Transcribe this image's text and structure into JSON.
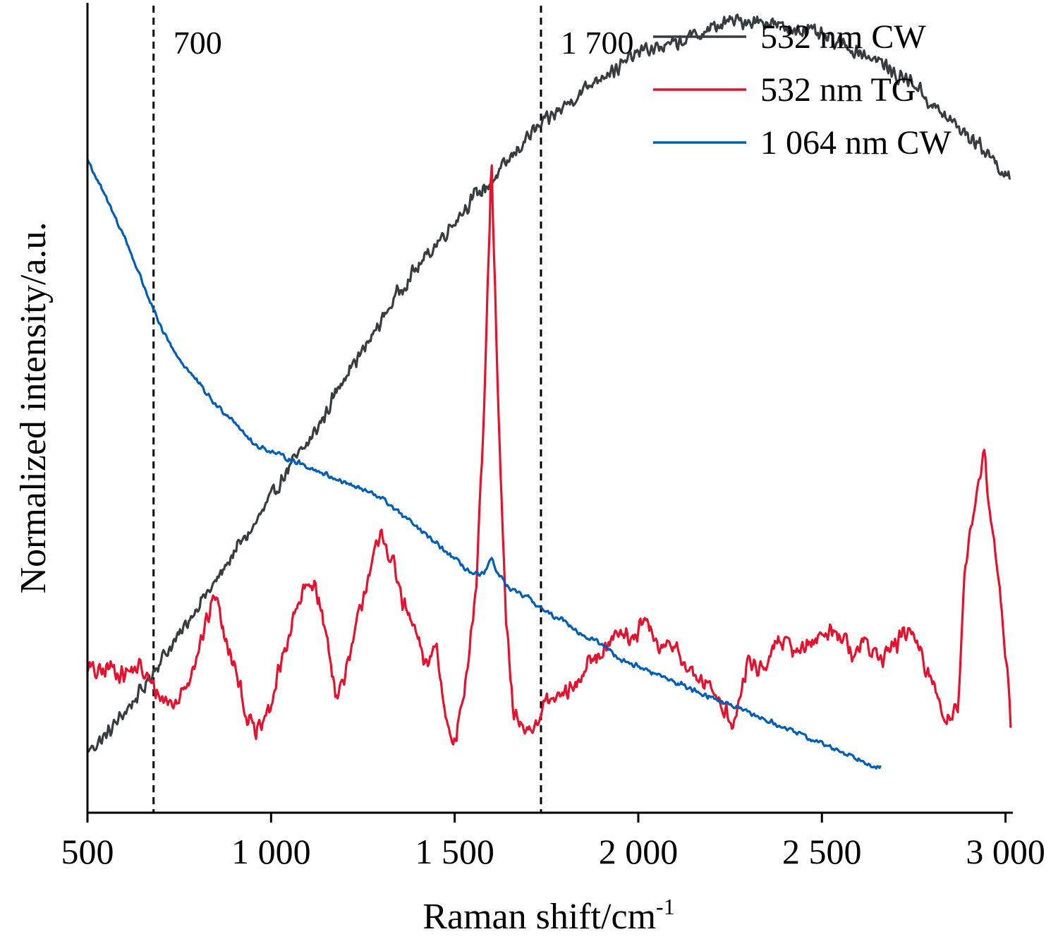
{
  "chart_data": {
    "type": "line",
    "xlabel": "Raman shift/cm",
    "xlabel_superscript": "-1",
    "ylabel": "Normalized intensity/a.u.",
    "xlim": [
      500,
      3020
    ],
    "ylim": [
      0,
      1.05
    ],
    "x_ticks": [
      500,
      1000,
      1500,
      2000,
      2500,
      3000
    ],
    "x_tick_labels": [
      "500",
      "1 000",
      "1 500",
      "2 000",
      "2 500",
      "3 000"
    ],
    "y_ticks_shown": false,
    "grid": false,
    "legend_position": "top-right",
    "reference_lines": [
      {
        "x": 680,
        "label": "700",
        "style": "dashed"
      },
      {
        "x": 1735,
        "label": "1 700",
        "style": "dashed"
      }
    ],
    "series": [
      {
        "name": "532 nm CW",
        "color": "#373c3f",
        "noise": 0.012,
        "x": [
          500,
          550,
          600,
          650,
          700,
          750,
          800,
          850,
          900,
          950,
          1000,
          1050,
          1100,
          1150,
          1200,
          1250,
          1300,
          1350,
          1400,
          1450,
          1500,
          1550,
          1600,
          1650,
          1700,
          1750,
          1800,
          1850,
          1900,
          1950,
          2000,
          2100,
          2200,
          2250,
          2300,
          2350,
          2400,
          2450,
          2500,
          2550,
          2600,
          2650,
          2700,
          2750,
          2800,
          2850,
          2900,
          2950,
          3000,
          3015
        ],
        "y": [
          0.08,
          0.1,
          0.13,
          0.16,
          0.2,
          0.23,
          0.27,
          0.3,
          0.34,
          0.37,
          0.41,
          0.45,
          0.48,
          0.52,
          0.57,
          0.6,
          0.64,
          0.68,
          0.71,
          0.74,
          0.77,
          0.8,
          0.82,
          0.85,
          0.88,
          0.9,
          0.92,
          0.94,
          0.96,
          0.97,
          0.99,
          1.0,
          1.02,
          1.03,
          1.03,
          1.03,
          1.02,
          1.02,
          1.01,
          1.0,
          0.99,
          0.98,
          0.96,
          0.95,
          0.92,
          0.9,
          0.88,
          0.86,
          0.83,
          0.82
        ]
      },
      {
        "name": "532 nm TG",
        "color": "#e8112d",
        "noise": 0.015,
        "x": [
          500,
          530,
          560,
          600,
          640,
          670,
          700,
          740,
          780,
          820,
          850,
          870,
          900,
          930,
          960,
          1000,
          1030,
          1060,
          1090,
          1120,
          1150,
          1180,
          1210,
          1240,
          1270,
          1300,
          1330,
          1360,
          1390,
          1420,
          1450,
          1470,
          1500,
          1530,
          1560,
          1580,
          1600,
          1620,
          1640,
          1660,
          1690,
          1720,
          1740,
          1780,
          1820,
          1860,
          1900,
          1940,
          1980,
          2020,
          2060,
          2100,
          2140,
          2180,
          2220,
          2260,
          2300,
          2340,
          2380,
          2420,
          2460,
          2500,
          2540,
          2580,
          2620,
          2660,
          2700,
          2740,
          2780,
          2810,
          2840,
          2870,
          2890,
          2920,
          2940,
          2960,
          2980,
          3000,
          3010,
          3015
        ],
        "y": [
          0.19,
          0.18,
          0.19,
          0.18,
          0.19,
          0.17,
          0.15,
          0.14,
          0.18,
          0.24,
          0.29,
          0.23,
          0.2,
          0.13,
          0.1,
          0.14,
          0.2,
          0.25,
          0.29,
          0.3,
          0.23,
          0.15,
          0.19,
          0.26,
          0.32,
          0.36,
          0.33,
          0.27,
          0.24,
          0.19,
          0.22,
          0.14,
          0.09,
          0.17,
          0.3,
          0.52,
          0.85,
          0.5,
          0.25,
          0.13,
          0.11,
          0.11,
          0.14,
          0.15,
          0.16,
          0.19,
          0.21,
          0.24,
          0.22,
          0.25,
          0.21,
          0.22,
          0.18,
          0.17,
          0.15,
          0.11,
          0.2,
          0.18,
          0.23,
          0.21,
          0.22,
          0.23,
          0.24,
          0.21,
          0.22,
          0.2,
          0.22,
          0.24,
          0.19,
          0.16,
          0.12,
          0.14,
          0.32,
          0.4,
          0.48,
          0.38,
          0.31,
          0.2,
          0.17,
          0.1
        ]
      },
      {
        "name": "1 064 nm CW",
        "color": "#005eb8",
        "noise": 0.004,
        "x": [
          500,
          550,
          600,
          650,
          700,
          750,
          800,
          850,
          900,
          950,
          1000,
          1050,
          1100,
          1150,
          1200,
          1250,
          1300,
          1350,
          1400,
          1450,
          1500,
          1550,
          1580,
          1600,
          1620,
          1650,
          1700,
          1750,
          1800,
          1850,
          1900,
          1950,
          2000,
          2050,
          2100,
          2150,
          2200,
          2250,
          2300,
          2350,
          2400,
          2450,
          2500,
          2550,
          2600,
          2650,
          2660
        ],
        "y": [
          0.85,
          0.8,
          0.75,
          0.69,
          0.63,
          0.59,
          0.56,
          0.53,
          0.51,
          0.48,
          0.47,
          0.46,
          0.45,
          0.44,
          0.43,
          0.42,
          0.41,
          0.39,
          0.37,
          0.35,
          0.33,
          0.31,
          0.31,
          0.33,
          0.31,
          0.29,
          0.28,
          0.26,
          0.25,
          0.23,
          0.22,
          0.2,
          0.19,
          0.18,
          0.17,
          0.16,
          0.15,
          0.14,
          0.13,
          0.12,
          0.11,
          0.1,
          0.09,
          0.08,
          0.07,
          0.06,
          0.06
        ]
      }
    ]
  }
}
